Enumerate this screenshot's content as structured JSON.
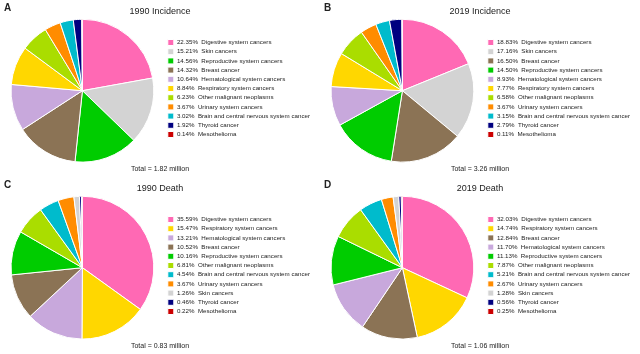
{
  "chart_data": [
    {
      "type": "pie",
      "title": "1990 Incidence",
      "annotations": [
        "A",
        "Total = 1.82 million"
      ],
      "legend": "right",
      "categories": [
        "22.35%  Digestive system cancers",
        "15.21%  Skin cancers",
        "14.56%  Reproductive system cancers",
        "14.32%  Breast cancer",
        "10.64%  Hematological system cancers",
        "8.84%  Respiratory system cancers",
        "6.23%  Other malignant neoplasms",
        "3.67%  Urinary system cancers",
        "3.02%  Brain and central nervous system cancer",
        "1.92%  Thyroid cancer",
        "0.14%  Mesothelioma"
      ],
      "values": [
        22.35,
        15.21,
        14.56,
        14.32,
        10.64,
        8.84,
        6.23,
        3.67,
        3.02,
        1.92,
        0.14
      ],
      "colors": [
        "#FF69B4",
        "#D3D3D3",
        "#00CC00",
        "#8B7355",
        "#C8A8DC",
        "#FFD700",
        "#AADD00",
        "#FF8C00",
        "#00BBCC",
        "#000080",
        "#CC0000"
      ]
    },
    {
      "type": "pie",
      "title": "2019 Incidence",
      "annotations": [
        "B",
        "Total = 3.26 million"
      ],
      "legend": "right",
      "categories": [
        "18.83%  Digestive system cancers",
        "17.16%  Skin cancers",
        "16.50%  Breast cancer",
        "14.50%  Reproductive system cancers",
        "8.93%  Hematological system cancers",
        "7.77%  Respiratory system cancers",
        "6.58%  Other malignant neoplasms",
        "3.67%  Urinary system cancers",
        "3.15%  Brain and central nervous system cancer",
        "2.79%  Thyroid cancer",
        "0.11%  Mesothelioma"
      ],
      "values": [
        18.83,
        17.16,
        16.5,
        14.5,
        8.93,
        7.77,
        6.58,
        3.67,
        3.15,
        2.79,
        0.11
      ],
      "colors": [
        "#FF69B4",
        "#D3D3D3",
        "#8B7355",
        "#00CC00",
        "#C8A8DC",
        "#FFD700",
        "#AADD00",
        "#FF8C00",
        "#00BBCC",
        "#000080",
        "#CC0000"
      ]
    },
    {
      "type": "pie",
      "title": "1990 Death",
      "annotations": [
        "C",
        "Total = 0.83 million"
      ],
      "legend": "right",
      "categories": [
        "35.59%  Digestive system cancers",
        "15.47%  Respiratory system cancers",
        "13.21%  Hematological system cancers",
        "10.52%  Breast cancer",
        "10.16%  Reproductive system cancers",
        "6.81%  Other malignant neoplasms",
        "4.54%  Brain and central nervous system cancer",
        "3.67%  Urinary system cancers",
        "1.26%  Skin cancers",
        "0.46%  Thyroid cancer",
        "0.22%  Mesothelioma"
      ],
      "values": [
        35.59,
        15.47,
        13.21,
        10.52,
        10.16,
        6.81,
        4.54,
        3.67,
        1.26,
        0.46,
        0.22
      ],
      "colors": [
        "#FF69B4",
        "#FFD700",
        "#C8A8DC",
        "#8B7355",
        "#00CC00",
        "#AADD00",
        "#00BBCC",
        "#FF8C00",
        "#D3D3D3",
        "#000080",
        "#CC0000"
      ]
    },
    {
      "type": "pie",
      "title": "2019 Death",
      "annotations": [
        "D",
        "Total = 1.06 million"
      ],
      "legend": "right",
      "categories": [
        "32.03%  Digestive system cancers",
        "14.74%  Respiratory system cancers",
        "12.84%  Breast cancer",
        "11.70%  Hematological system cancers",
        "11.13%  Reproductive system cancers",
        "7.87%  Other malignant neoplasms",
        "5.21%  Brain and central nervous system cancer",
        "2.67%  Urinary system cancers",
        "1.28%  Skin cancers",
        "0.56%  Thyroid cancer",
        "0.25%  Mesothelioma"
      ],
      "values": [
        32.03,
        14.74,
        12.84,
        11.7,
        11.13,
        7.87,
        5.21,
        2.67,
        1.28,
        0.56,
        0.25
      ],
      "colors": [
        "#FF69B4",
        "#FFD700",
        "#8B7355",
        "#C8A8DC",
        "#00CC00",
        "#AADD00",
        "#00BBCC",
        "#FF8C00",
        "#D3D3D3",
        "#000080",
        "#CC0000"
      ]
    }
  ]
}
